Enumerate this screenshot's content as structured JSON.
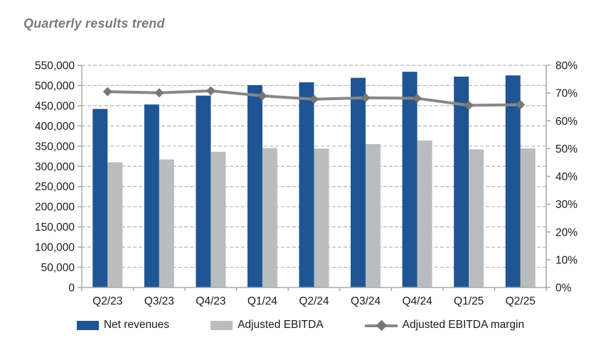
{
  "title": "Quarterly results trend",
  "colors": {
    "net_revenues": "#1f5592",
    "adjusted_ebitda": "#b9bdc0",
    "margin_line": "#888888",
    "margin_marker": "#777777",
    "gridline": "#b5b5b5",
    "axis_line": "#a9a9a9",
    "axis_text": "#1a1a1a",
    "title_text": "#7a7a7a"
  },
  "chart_data": {
    "type": "bar",
    "subtype": "grouped bars with secondary-axis line",
    "title": "Quarterly results trend",
    "categories": [
      "Q2/23",
      "Q3/23",
      "Q4/23",
      "Q1/24",
      "Q2/24",
      "Q3/24",
      "Q4/24",
      "Q1/25",
      "Q2/25"
    ],
    "series": [
      {
        "name": "Net revenues",
        "type": "bar",
        "axis": "left",
        "values": [
          442000,
          453000,
          475000,
          501000,
          508000,
          519000,
          534000,
          522000,
          525000
        ]
      },
      {
        "name": "Adjusted EBITDA",
        "type": "bar",
        "axis": "left",
        "values": [
          310000,
          317000,
          336000,
          345000,
          344000,
          355000,
          364000,
          342000,
          344000
        ]
      },
      {
        "name": "Adjusted EBITDA margin",
        "type": "line",
        "axis": "right",
        "values": [
          70.5,
          70.1,
          70.8,
          69.0,
          67.8,
          68.3,
          68.1,
          65.6,
          65.8
        ]
      }
    ],
    "left_axis": {
      "min": 0,
      "max": 550000,
      "step": 50000,
      "tick_labels": [
        "550,000",
        "500,000",
        "450,000",
        "400,000",
        "350,000",
        "300,000",
        "250,000",
        "200,000",
        "150,000",
        "100,000",
        "50,000",
        "0"
      ]
    },
    "right_axis": {
      "min": 0,
      "max": 80,
      "step": 10,
      "tick_labels": [
        "80%",
        "70%",
        "60%",
        "50%",
        "40%",
        "30%",
        "20%",
        "10%",
        "0%"
      ]
    },
    "grid": "horizontal dashed at every 50,000",
    "legend_position": "bottom"
  },
  "legend": {
    "items": [
      {
        "label": "Net revenues",
        "swatch": "blue-rect"
      },
      {
        "label": "Adjusted EBITDA",
        "swatch": "gray-rect"
      },
      {
        "label": "Adjusted EBITDA margin",
        "swatch": "gray-line-diamond"
      }
    ]
  }
}
